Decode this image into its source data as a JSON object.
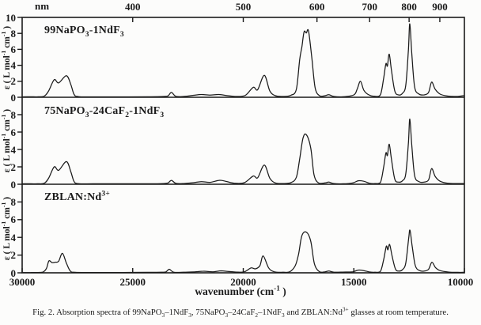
{
  "colors": {
    "ink": "#1b1b1b",
    "background": "#fcfcfb"
  },
  "figure": {
    "caption_segments": [
      {
        "t": "Fig. 2. Absorption spectra of 99NaPO"
      },
      {
        "sub": "3"
      },
      {
        "t": "–1NdF"
      },
      {
        "sub": "3"
      },
      {
        "t": ", 75NaPO"
      },
      {
        "sub": "3"
      },
      {
        "t": "–24CaF"
      },
      {
        "sub": "2"
      },
      {
        "t": "–1NdF"
      },
      {
        "sub": "3"
      },
      {
        "t": " and ZBLAN:Nd"
      },
      {
        "sup": "3+"
      },
      {
        "t": " glasses at room temperature."
      }
    ]
  },
  "chart_data": {
    "type": "line",
    "title": "",
    "legend": "none",
    "grid": false,
    "top_axis": {
      "label": "nm",
      "ticks": [
        400,
        500,
        600,
        700,
        800,
        900
      ],
      "unit": "nm"
    },
    "bottom_axis": {
      "label_segments": [
        {
          "t": "wavenumber (cm"
        },
        {
          "sup": "-1"
        },
        {
          "t": " )"
        }
      ],
      "ticks": [
        30000,
        25000,
        20000,
        15000,
        10000
      ],
      "range": [
        30000,
        10000
      ],
      "unit": "cm-1"
    },
    "y_axis": {
      "label_segments": [
        {
          "t": "ε ( L mol"
        },
        {
          "sup": "-1"
        },
        {
          "t": " cm"
        },
        {
          "sup": "-1"
        },
        {
          "t": " )"
        }
      ],
      "ticks": [
        0,
        2,
        4,
        6,
        8,
        10
      ],
      "range": [
        0,
        10
      ]
    },
    "panels": [
      {
        "series_name": "99NaPO3-1NdF3",
        "title_segments": [
          {
            "t": "99NaPO"
          },
          {
            "sub": "3"
          },
          {
            "t": "-1NdF"
          },
          {
            "sub": "3"
          }
        ],
        "points": [
          [
            30000,
            0.05
          ],
          [
            29600,
            0.06
          ],
          [
            29300,
            0.06
          ],
          [
            29000,
            0.15
          ],
          [
            28800,
            0.8
          ],
          [
            28550,
            2.2
          ],
          [
            28350,
            1.8
          ],
          [
            28000,
            2.7
          ],
          [
            27800,
            1.6
          ],
          [
            27650,
            0.35
          ],
          [
            27450,
            0.08
          ],
          [
            26800,
            0.05
          ],
          [
            25500,
            0.05
          ],
          [
            24300,
            0.06
          ],
          [
            23600,
            0.1
          ],
          [
            23400,
            0.18
          ],
          [
            23250,
            0.6
          ],
          [
            23050,
            0.12
          ],
          [
            22700,
            0.1
          ],
          [
            22250,
            0.25
          ],
          [
            21900,
            0.35
          ],
          [
            21500,
            0.28
          ],
          [
            21100,
            0.35
          ],
          [
            20700,
            0.2
          ],
          [
            20300,
            0.1
          ],
          [
            19900,
            0.25
          ],
          [
            19550,
            1.25
          ],
          [
            19350,
            0.95
          ],
          [
            19050,
            2.75
          ],
          [
            18800,
            0.8
          ],
          [
            18550,
            0.2
          ],
          [
            18200,
            0.1
          ],
          [
            17850,
            0.25
          ],
          [
            17600,
            1.0
          ],
          [
            17450,
            4.7
          ],
          [
            17350,
            6.3
          ],
          [
            17250,
            8.2
          ],
          [
            17150,
            8.05
          ],
          [
            17050,
            8.3
          ],
          [
            16900,
            5.0
          ],
          [
            16750,
            1.2
          ],
          [
            16550,
            0.2
          ],
          [
            16300,
            0.2
          ],
          [
            16130,
            0.32
          ],
          [
            15900,
            0.1
          ],
          [
            15500,
            0.06
          ],
          [
            15000,
            0.3
          ],
          [
            14850,
            1.0
          ],
          [
            14700,
            2.0
          ],
          [
            14550,
            0.9
          ],
          [
            14350,
            0.35
          ],
          [
            14050,
            0.12
          ],
          [
            13800,
            0.3
          ],
          [
            13650,
            2.4
          ],
          [
            13550,
            4.2
          ],
          [
            13480,
            3.9
          ],
          [
            13400,
            5.4
          ],
          [
            13300,
            3.4
          ],
          [
            13150,
            0.8
          ],
          [
            12980,
            0.3
          ],
          [
            12800,
            0.5
          ],
          [
            12650,
            1.5
          ],
          [
            12530,
            6.0
          ],
          [
            12470,
            9.2
          ],
          [
            12380,
            5.5
          ],
          [
            12250,
            1.3
          ],
          [
            12050,
            0.4
          ],
          [
            11820,
            0.3
          ],
          [
            11620,
            0.6
          ],
          [
            11480,
            1.9
          ],
          [
            11320,
            1.0
          ],
          [
            11100,
            0.4
          ],
          [
            10750,
            0.15
          ],
          [
            10350,
            0.1
          ],
          [
            10050,
            0.2
          ],
          [
            10000,
            0.15
          ]
        ]
      },
      {
        "series_name": "75NaPO3-24CaF2-1NdF3",
        "title_segments": [
          {
            "t": "75NaPO"
          },
          {
            "sub": "3"
          },
          {
            "t": "-24CaF"
          },
          {
            "sub": "2"
          },
          {
            "t": "-1NdF"
          },
          {
            "sub": "3"
          }
        ],
        "points": [
          [
            30000,
            0.05
          ],
          [
            29600,
            0.05
          ],
          [
            29300,
            0.05
          ],
          [
            29000,
            0.12
          ],
          [
            28800,
            0.7
          ],
          [
            28550,
            2.0
          ],
          [
            28350,
            1.6
          ],
          [
            28000,
            2.6
          ],
          [
            27800,
            1.45
          ],
          [
            27650,
            0.3
          ],
          [
            27450,
            0.07
          ],
          [
            26800,
            0.05
          ],
          [
            25500,
            0.05
          ],
          [
            24300,
            0.05
          ],
          [
            23600,
            0.08
          ],
          [
            23400,
            0.15
          ],
          [
            23250,
            0.45
          ],
          [
            23050,
            0.1
          ],
          [
            22700,
            0.08
          ],
          [
            22250,
            0.18
          ],
          [
            21900,
            0.3
          ],
          [
            21500,
            0.22
          ],
          [
            21100,
            0.45
          ],
          [
            20800,
            0.35
          ],
          [
            20400,
            0.12
          ],
          [
            19950,
            0.18
          ],
          [
            19550,
            0.95
          ],
          [
            19350,
            0.75
          ],
          [
            19050,
            2.2
          ],
          [
            18800,
            0.7
          ],
          [
            18550,
            0.15
          ],
          [
            18200,
            0.08
          ],
          [
            17850,
            0.18
          ],
          [
            17600,
            0.8
          ],
          [
            17450,
            2.9
          ],
          [
            17300,
            5.3
          ],
          [
            17150,
            5.7
          ],
          [
            16950,
            4.2
          ],
          [
            16800,
            1.1
          ],
          [
            16600,
            0.15
          ],
          [
            16300,
            0.15
          ],
          [
            16130,
            0.25
          ],
          [
            15900,
            0.08
          ],
          [
            15500,
            0.05
          ],
          [
            15050,
            0.15
          ],
          [
            14800,
            0.4
          ],
          [
            14550,
            0.35
          ],
          [
            14300,
            0.12
          ],
          [
            14050,
            0.08
          ],
          [
            13800,
            0.2
          ],
          [
            13650,
            2.0
          ],
          [
            13550,
            3.6
          ],
          [
            13480,
            3.3
          ],
          [
            13400,
            4.6
          ],
          [
            13300,
            2.9
          ],
          [
            13150,
            0.6
          ],
          [
            12980,
            0.25
          ],
          [
            12800,
            0.4
          ],
          [
            12650,
            1.2
          ],
          [
            12530,
            4.8
          ],
          [
            12470,
            7.5
          ],
          [
            12380,
            4.5
          ],
          [
            12250,
            1.0
          ],
          [
            12050,
            0.3
          ],
          [
            11820,
            0.25
          ],
          [
            11620,
            0.5
          ],
          [
            11480,
            1.8
          ],
          [
            11320,
            0.9
          ],
          [
            11100,
            0.35
          ],
          [
            10750,
            0.12
          ],
          [
            10300,
            0.08
          ],
          [
            10000,
            0.08
          ]
        ]
      },
      {
        "series_name": "ZBLAN:Nd3+",
        "title_segments": [
          {
            "t": "ZBLAN:Nd"
          },
          {
            "sup": "3+"
          }
        ],
        "points": [
          [
            30000,
            0.03
          ],
          [
            29600,
            0.04
          ],
          [
            29300,
            0.04
          ],
          [
            29050,
            0.1
          ],
          [
            28900,
            0.5
          ],
          [
            28790,
            1.35
          ],
          [
            28650,
            1.15
          ],
          [
            28500,
            1.2
          ],
          [
            28350,
            1.3
          ],
          [
            28180,
            2.2
          ],
          [
            28000,
            1.1
          ],
          [
            27820,
            0.2
          ],
          [
            27600,
            0.05
          ],
          [
            26800,
            0.04
          ],
          [
            25500,
            0.04
          ],
          [
            24300,
            0.05
          ],
          [
            23700,
            0.06
          ],
          [
            23500,
            0.1
          ],
          [
            23345,
            0.4
          ],
          [
            23150,
            0.07
          ],
          [
            22700,
            0.06
          ],
          [
            22250,
            0.1
          ],
          [
            21800,
            0.18
          ],
          [
            21400,
            0.12
          ],
          [
            21000,
            0.22
          ],
          [
            20700,
            0.15
          ],
          [
            20300,
            0.08
          ],
          [
            19950,
            0.12
          ],
          [
            19650,
            0.55
          ],
          [
            19450,
            0.45
          ],
          [
            19250,
            0.8
          ],
          [
            19100,
            1.9
          ],
          [
            18850,
            0.55
          ],
          [
            18600,
            0.12
          ],
          [
            18200,
            0.06
          ],
          [
            17900,
            0.12
          ],
          [
            17650,
            0.8
          ],
          [
            17500,
            2.1
          ],
          [
            17350,
            4.2
          ],
          [
            17150,
            4.6
          ],
          [
            16950,
            3.6
          ],
          [
            16780,
            1.0
          ],
          [
            16550,
            0.12
          ],
          [
            16300,
            0.12
          ],
          [
            16130,
            0.2
          ],
          [
            15900,
            0.07
          ],
          [
            15500,
            0.08
          ],
          [
            15050,
            0.12
          ],
          [
            14800,
            0.3
          ],
          [
            14550,
            0.25
          ],
          [
            14300,
            0.1
          ],
          [
            14050,
            0.06
          ],
          [
            13800,
            0.15
          ],
          [
            13650,
            1.5
          ],
          [
            13530,
            3.0
          ],
          [
            13460,
            2.6
          ],
          [
            13380,
            3.2
          ],
          [
            13270,
            1.9
          ],
          [
            13120,
            0.45
          ],
          [
            12980,
            0.2
          ],
          [
            12800,
            0.35
          ],
          [
            12650,
            1.1
          ],
          [
            12520,
            3.9
          ],
          [
            12460,
            4.8
          ],
          [
            12360,
            3.0
          ],
          [
            12220,
            0.8
          ],
          [
            12020,
            0.25
          ],
          [
            11820,
            0.2
          ],
          [
            11620,
            0.4
          ],
          [
            11470,
            1.2
          ],
          [
            11310,
            0.6
          ],
          [
            11100,
            0.25
          ],
          [
            10700,
            0.08
          ],
          [
            10300,
            0.05
          ],
          [
            10000,
            0.05
          ]
        ]
      }
    ]
  }
}
